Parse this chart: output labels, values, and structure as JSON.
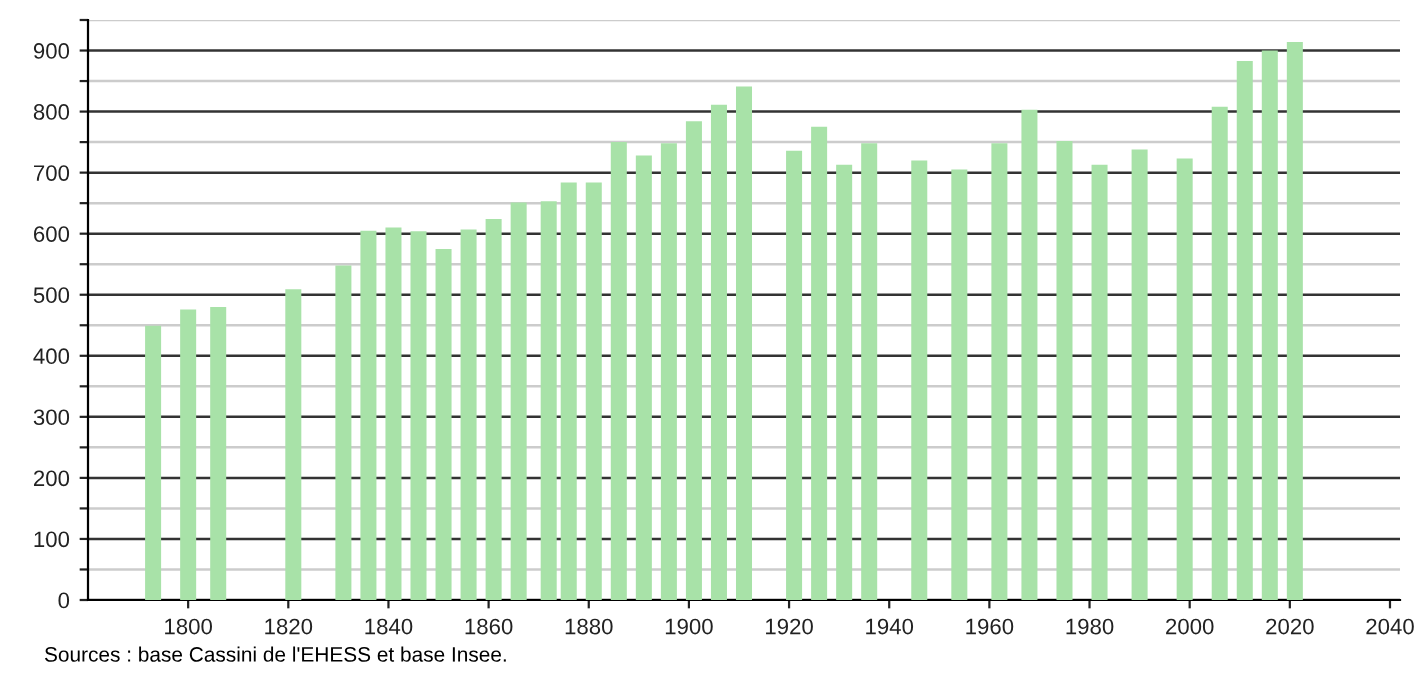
{
  "chart_data": {
    "type": "bar",
    "x": [
      1793,
      1800,
      1806,
      1821,
      1831,
      1836,
      1841,
      1846,
      1851,
      1856,
      1861,
      1866,
      1872,
      1876,
      1881,
      1886,
      1891,
      1896,
      1901,
      1906,
      1911,
      1921,
      1926,
      1931,
      1936,
      1946,
      1954,
      1962,
      1968,
      1975,
      1982,
      1990,
      1999,
      2006,
      2011,
      2016,
      2021
    ],
    "values": [
      449,
      476,
      480,
      509,
      548,
      605,
      610,
      604,
      575,
      607,
      624,
      651,
      653,
      684,
      684,
      750,
      728,
      748,
      784,
      811,
      841,
      736,
      775,
      713,
      748,
      720,
      705,
      748,
      803,
      752,
      713,
      738,
      723,
      808,
      883,
      900,
      914
    ],
    "color": "#a8e2a8",
    "xlim": [
      1780,
      2042
    ],
    "xticks": [
      1800,
      1820,
      1840,
      1860,
      1880,
      1900,
      1920,
      1940,
      1960,
      1980,
      2000,
      2020,
      2040
    ],
    "ylim": [
      0,
      950
    ],
    "yticks": [
      0,
      {
        "value": 50,
        "label": null
      },
      100,
      {
        "value": 150,
        "label": null
      },
      200,
      {
        "value": 250,
        "label": null
      },
      300,
      {
        "value": 350,
        "label": null
      },
      400,
      {
        "value": 450,
        "label": null
      },
      500,
      {
        "value": 550,
        "label": null
      },
      600,
      {
        "value": 650,
        "label": null
      },
      700,
      {
        "value": 750,
        "label": null
      },
      800,
      {
        "value": 850,
        "label": null
      },
      900,
      {
        "value": 950,
        "label": null
      }
    ],
    "grid": "y",
    "annotations": [
      "Sources : base Cassini de l'EHESS et base Insee."
    ]
  }
}
